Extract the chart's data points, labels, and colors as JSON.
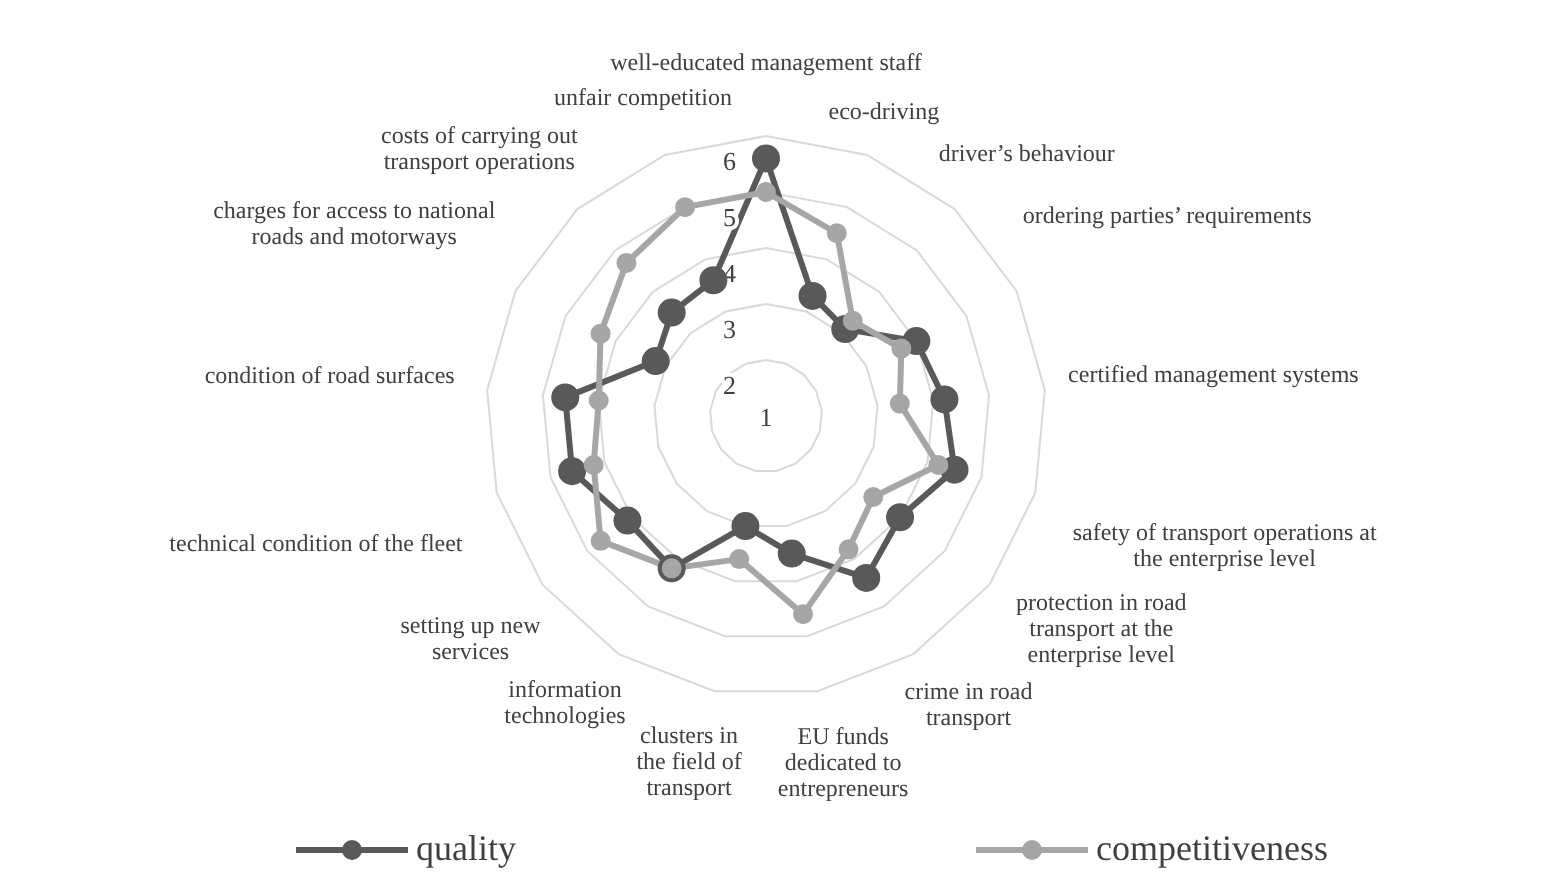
{
  "chart_data": {
    "type": "radar",
    "categories": [
      "well-educated management staff",
      "eco-driving",
      "driver’s behaviour",
      "ordering parties’ requirements",
      "certified management systems",
      "safety of transport operations at the enterprise level",
      "protection in road transport at the enterprise level",
      "crime in road transport",
      "EU funds dedicated to entrepreneurs",
      "clusters in the field of transport",
      "information technologies",
      "setting up new services",
      "technical condition of the fleet",
      "condition of road surfaces",
      "charges for access to national roads and motorways",
      "costs of carrying out transport operations",
      "unfair competition"
    ],
    "series": [
      {
        "name": "quality",
        "color": "#595959",
        "values": [
          5.6,
          3.3,
          3.1,
          4.0,
          4.2,
          4.5,
          4.0,
          4.4,
          3.5,
          3.0,
          4.2,
          4.1,
          4.6,
          4.6,
          3.2,
          3.5,
          3.6
        ]
      },
      {
        "name": "competitiveness",
        "color": "#a6a6a6",
        "values": [
          5.0,
          4.5,
          3.3,
          3.7,
          3.4,
          4.2,
          3.4,
          3.8,
          4.6,
          3.6,
          4.2,
          4.7,
          4.2,
          4.0,
          4.3,
          4.7,
          5.0
        ]
      }
    ],
    "ylim": [
      1,
      6
    ],
    "yticks": [
      1,
      2,
      3,
      4,
      5,
      6
    ],
    "grid": true,
    "legend": "bottom",
    "marker": "circle"
  }
}
